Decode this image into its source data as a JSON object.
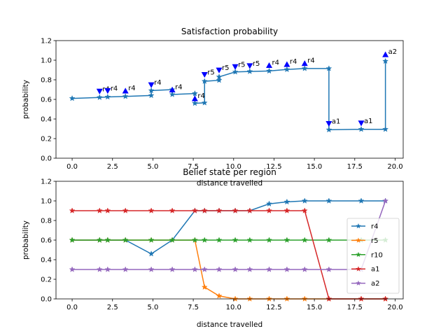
{
  "chart_data": [
    {
      "type": "line",
      "title": "Satisfaction probability",
      "xlabel": "distance travelled",
      "ylabel": "probability",
      "xlim": [
        -1,
        20.5
      ],
      "ylim": [
        0,
        1.2
      ],
      "xticks": [
        "0.0",
        "2.5",
        "5.0",
        "7.5",
        "10.0",
        "12.5",
        "15.0",
        "17.5",
        "20.0"
      ],
      "yticks": [
        "0.0",
        "0.2",
        "0.4",
        "0.6",
        "0.8",
        "1.0",
        "1.2"
      ],
      "grid": false,
      "series": [
        {
          "color": "#1f77b4",
          "marker": "star",
          "x": [
            0.0,
            1.7,
            2.2,
            3.3,
            4.9,
            4.9,
            6.2,
            6.2,
            7.6,
            7.6,
            8.2,
            8.2,
            9.1,
            9.1,
            10.1,
            11.0,
            12.2,
            13.3,
            14.4,
            15.9,
            15.9,
            17.9,
            19.4,
            19.4
          ],
          "y": [
            0.61,
            0.62,
            0.625,
            0.63,
            0.64,
            0.69,
            0.7,
            0.65,
            0.66,
            0.56,
            0.565,
            0.785,
            0.795,
            0.83,
            0.88,
            0.885,
            0.89,
            0.905,
            0.915,
            0.915,
            0.29,
            0.295,
            0.295,
            0.99
          ]
        }
      ],
      "annotations": [
        {
          "x": 1.7,
          "y": 0.68,
          "label": "r4",
          "marker": "triangle-down"
        },
        {
          "x": 2.2,
          "y": 0.685,
          "label": "r4",
          "marker": "triangle-down"
        },
        {
          "x": 3.3,
          "y": 0.69,
          "label": "r4",
          "marker": "triangle-up"
        },
        {
          "x": 4.9,
          "y": 0.745,
          "label": "r4",
          "marker": "triangle-down"
        },
        {
          "x": 6.2,
          "y": 0.7,
          "label": "r4",
          "marker": "triangle-up"
        },
        {
          "x": 7.6,
          "y": 0.61,
          "label": "r4",
          "marker": "triangle-up"
        },
        {
          "x": 8.2,
          "y": 0.85,
          "label": "r5",
          "marker": "triangle-down"
        },
        {
          "x": 9.1,
          "y": 0.895,
          "label": "r5",
          "marker": "triangle-down"
        },
        {
          "x": 10.1,
          "y": 0.93,
          "label": "r5",
          "marker": "triangle-down"
        },
        {
          "x": 11.0,
          "y": 0.94,
          "label": "r5",
          "marker": "triangle-down"
        },
        {
          "x": 12.2,
          "y": 0.95,
          "label": "r4",
          "marker": "triangle-up"
        },
        {
          "x": 13.3,
          "y": 0.96,
          "label": "r4",
          "marker": "triangle-up"
        },
        {
          "x": 14.4,
          "y": 0.97,
          "label": "r4",
          "marker": "triangle-up"
        },
        {
          "x": 15.9,
          "y": 0.35,
          "label": "a1",
          "marker": "triangle-down"
        },
        {
          "x": 17.9,
          "y": 0.355,
          "label": "a1",
          "marker": "triangle-down"
        },
        {
          "x": 19.4,
          "y": 1.06,
          "label": "a2",
          "marker": "triangle-up"
        }
      ]
    },
    {
      "type": "line",
      "title": "Belief state per region",
      "xlabel": "distance travelled",
      "ylabel": "probability",
      "xlim": [
        -1,
        20.5
      ],
      "ylim": [
        0,
        1.2
      ],
      "xticks": [
        "0.0",
        "2.5",
        "5.0",
        "7.5",
        "10.0",
        "12.5",
        "15.0",
        "17.5",
        "20.0"
      ],
      "yticks": [
        "0.0",
        "0.2",
        "0.4",
        "0.6",
        "0.8",
        "1.0",
        "1.2"
      ],
      "grid": false,
      "legend": "center-right",
      "x": [
        0.0,
        1.7,
        2.2,
        3.3,
        4.9,
        6.2,
        7.6,
        8.2,
        9.1,
        10.1,
        11.0,
        12.2,
        13.3,
        14.4,
        15.9,
        17.9,
        19.4
      ],
      "series": [
        {
          "name": "r4",
          "color": "#1f77b4",
          "marker": "star",
          "values": [
            0.6,
            0.6,
            0.6,
            0.6,
            0.46,
            0.6,
            0.9,
            0.9,
            0.9,
            0.9,
            0.9,
            0.97,
            0.99,
            1.0,
            1.0,
            1.0,
            1.0
          ]
        },
        {
          "name": "r5",
          "color": "#ff7f0e",
          "marker": "star",
          "values": [
            0.6,
            0.6,
            0.6,
            0.6,
            0.6,
            0.6,
            0.6,
            0.12,
            0.03,
            0.0,
            0.0,
            0.0,
            0.0,
            0.0,
            0.0,
            0.0,
            0.0
          ]
        },
        {
          "name": "r10",
          "color": "#2ca02c",
          "marker": "star",
          "values": [
            0.6,
            0.6,
            0.6,
            0.6,
            0.6,
            0.6,
            0.6,
            0.6,
            0.6,
            0.6,
            0.6,
            0.6,
            0.6,
            0.6,
            0.6,
            0.6,
            0.6
          ]
        },
        {
          "name": "a1",
          "color": "#d62728",
          "marker": "star",
          "values": [
            0.9,
            0.9,
            0.9,
            0.9,
            0.9,
            0.9,
            0.9,
            0.9,
            0.9,
            0.9,
            0.9,
            0.9,
            0.9,
            0.9,
            0.0,
            0.0,
            0.0
          ]
        },
        {
          "name": "a2",
          "color": "#9467bd",
          "marker": "star",
          "values": [
            0.3,
            0.3,
            0.3,
            0.3,
            0.3,
            0.3,
            0.3,
            0.3,
            0.3,
            0.3,
            0.3,
            0.3,
            0.3,
            0.3,
            0.3,
            0.3,
            1.0
          ]
        }
      ]
    }
  ]
}
